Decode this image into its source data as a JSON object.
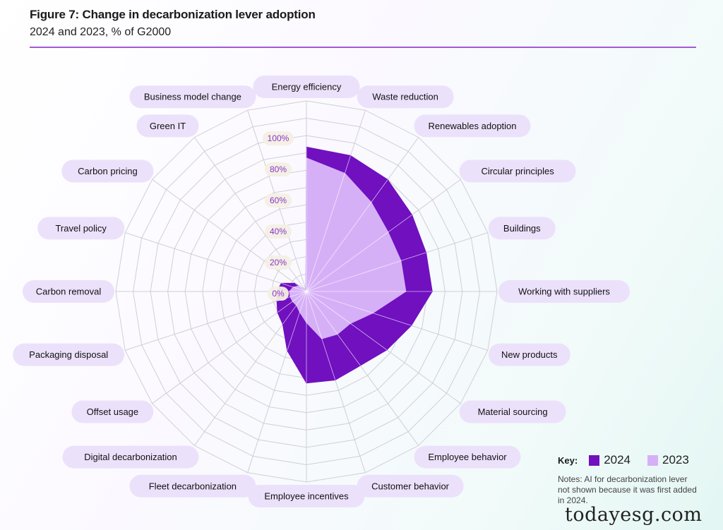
{
  "header": {
    "title": "Figure 7: Change in decarbonization lever adoption",
    "subtitle": "2024 and 2023, % of G2000"
  },
  "colors": {
    "series_2024": "#7010bf",
    "series_2023": "#d6b0f7",
    "label_pill": "#ece1fb",
    "grid": "#cfcfd6",
    "tick_text": "#8a35c9",
    "accent_rule": "#a35ad6"
  },
  "chart_data": {
    "type": "radar",
    "title": "Figure 7: Change in decarbonization lever adoption",
    "subtitle": "2024 and 2023, % of G2000",
    "categories": [
      "Energy efficiency",
      "Waste reduction",
      "Renewables adoption",
      "Circular principles",
      "Buildings",
      "Working with suppliers",
      "New products",
      "Material sourcing",
      "Employee behavior",
      "Customer behavior",
      "Employee incentives",
      "Fleet decarbonization",
      "Digital decarbonization",
      "Offset usage",
      "Packaging disposal",
      "Carbon removal",
      "Travel policy",
      "Carbon pricing",
      "Green IT",
      "Business model change"
    ],
    "series": [
      {
        "name": "2024",
        "values": [
          93,
          92,
          89,
          84,
          81,
          81,
          71,
          64,
          59,
          60,
          59,
          40,
          26,
          23,
          20,
          19,
          17,
          9,
          1,
          1
        ]
      },
      {
        "name": "2023",
        "values": [
          86,
          80,
          71,
          65,
          64,
          64,
          45,
          35,
          34,
          32,
          20,
          14,
          11,
          11,
          11,
          11,
          9,
          6,
          1,
          1
        ]
      }
    ],
    "rlim": [
      0,
      100
    ],
    "ticks": [
      "100%",
      "80%",
      "60%",
      "40%",
      "20%",
      "0%"
    ],
    "tick_values": [
      100,
      80,
      60,
      40,
      20,
      0
    ],
    "legend": {
      "title": "Key:",
      "position": "bottom-right"
    }
  },
  "legend": {
    "title": "Key:",
    "items": [
      {
        "label": "2024",
        "color": "#7010bf"
      },
      {
        "label": "2023",
        "color": "#d6b0f7"
      }
    ]
  },
  "notes": "Notes: AI for decarbonization lever not shown because it was first added in 2024.",
  "watermark": "todayesg.com"
}
